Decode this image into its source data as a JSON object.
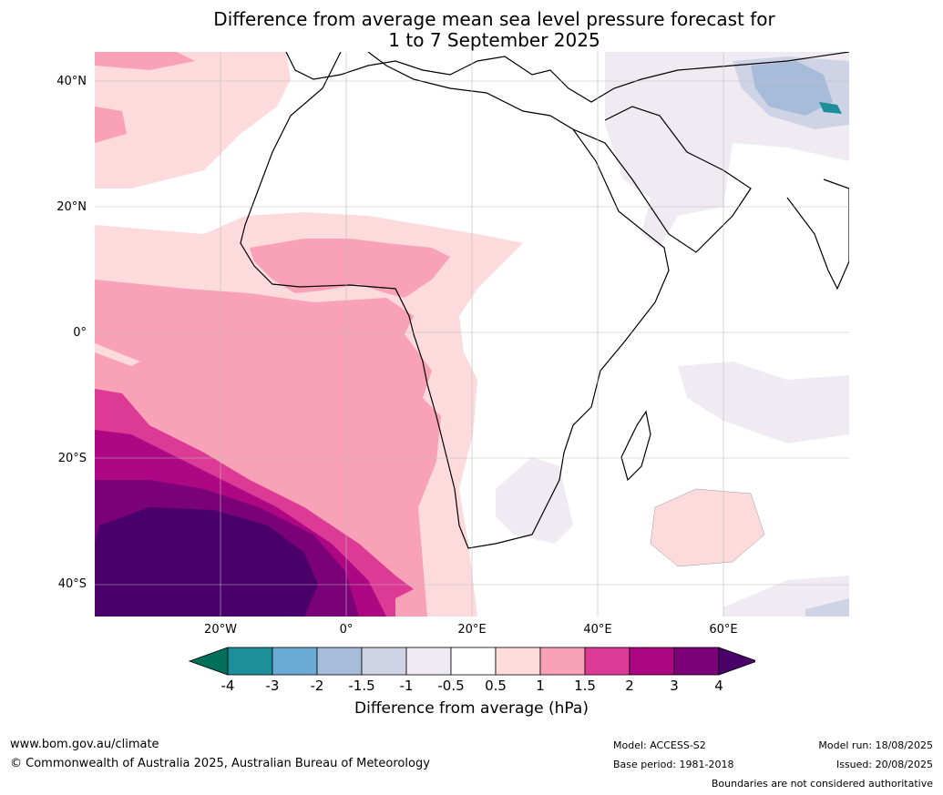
{
  "title_line1": "Difference from average mean sea level pressure forecast for",
  "title_line2": "1 to 7 September 2025",
  "map": {
    "lon_range": [
      -40,
      80
    ],
    "lat_range": [
      -45,
      45
    ],
    "lat_ticks": [
      "40°N",
      "20°N",
      "0°",
      "20°S",
      "40°S"
    ],
    "lon_ticks": [
      "20°W",
      "0°",
      "20°E",
      "40°E",
      "60°E"
    ]
  },
  "colorbar": {
    "tick_labels": [
      "-4",
      "-3",
      "-2",
      "-1.5",
      "-1",
      "-0.5",
      "0.5",
      "1",
      "1.5",
      "2",
      "3",
      "4"
    ],
    "colors": [
      "#00705a",
      "#1d8f9a",
      "#6aaad4",
      "#a7bcd9",
      "#cfd3e6",
      "#f0ebf3",
      "#ffffff",
      "#fddbdc",
      "#f9a1b7",
      "#dd3a96",
      "#ad0784",
      "#7a0177",
      "#49006a"
    ],
    "title": "Difference from average (hPa)"
  },
  "footer": {
    "url": "www.bom.gov.au/climate",
    "copyright": "© Commonwealth of Australia 2025, Australian Bureau of Meteorology",
    "model": "Model: ACCESS-S2",
    "base_period": "Base period: 1981-2018",
    "model_run": "Model run: 18/08/2025",
    "issued": "Issued: 20/08/2025",
    "disclaimer": "Boundaries are not considered authoritative"
  }
}
